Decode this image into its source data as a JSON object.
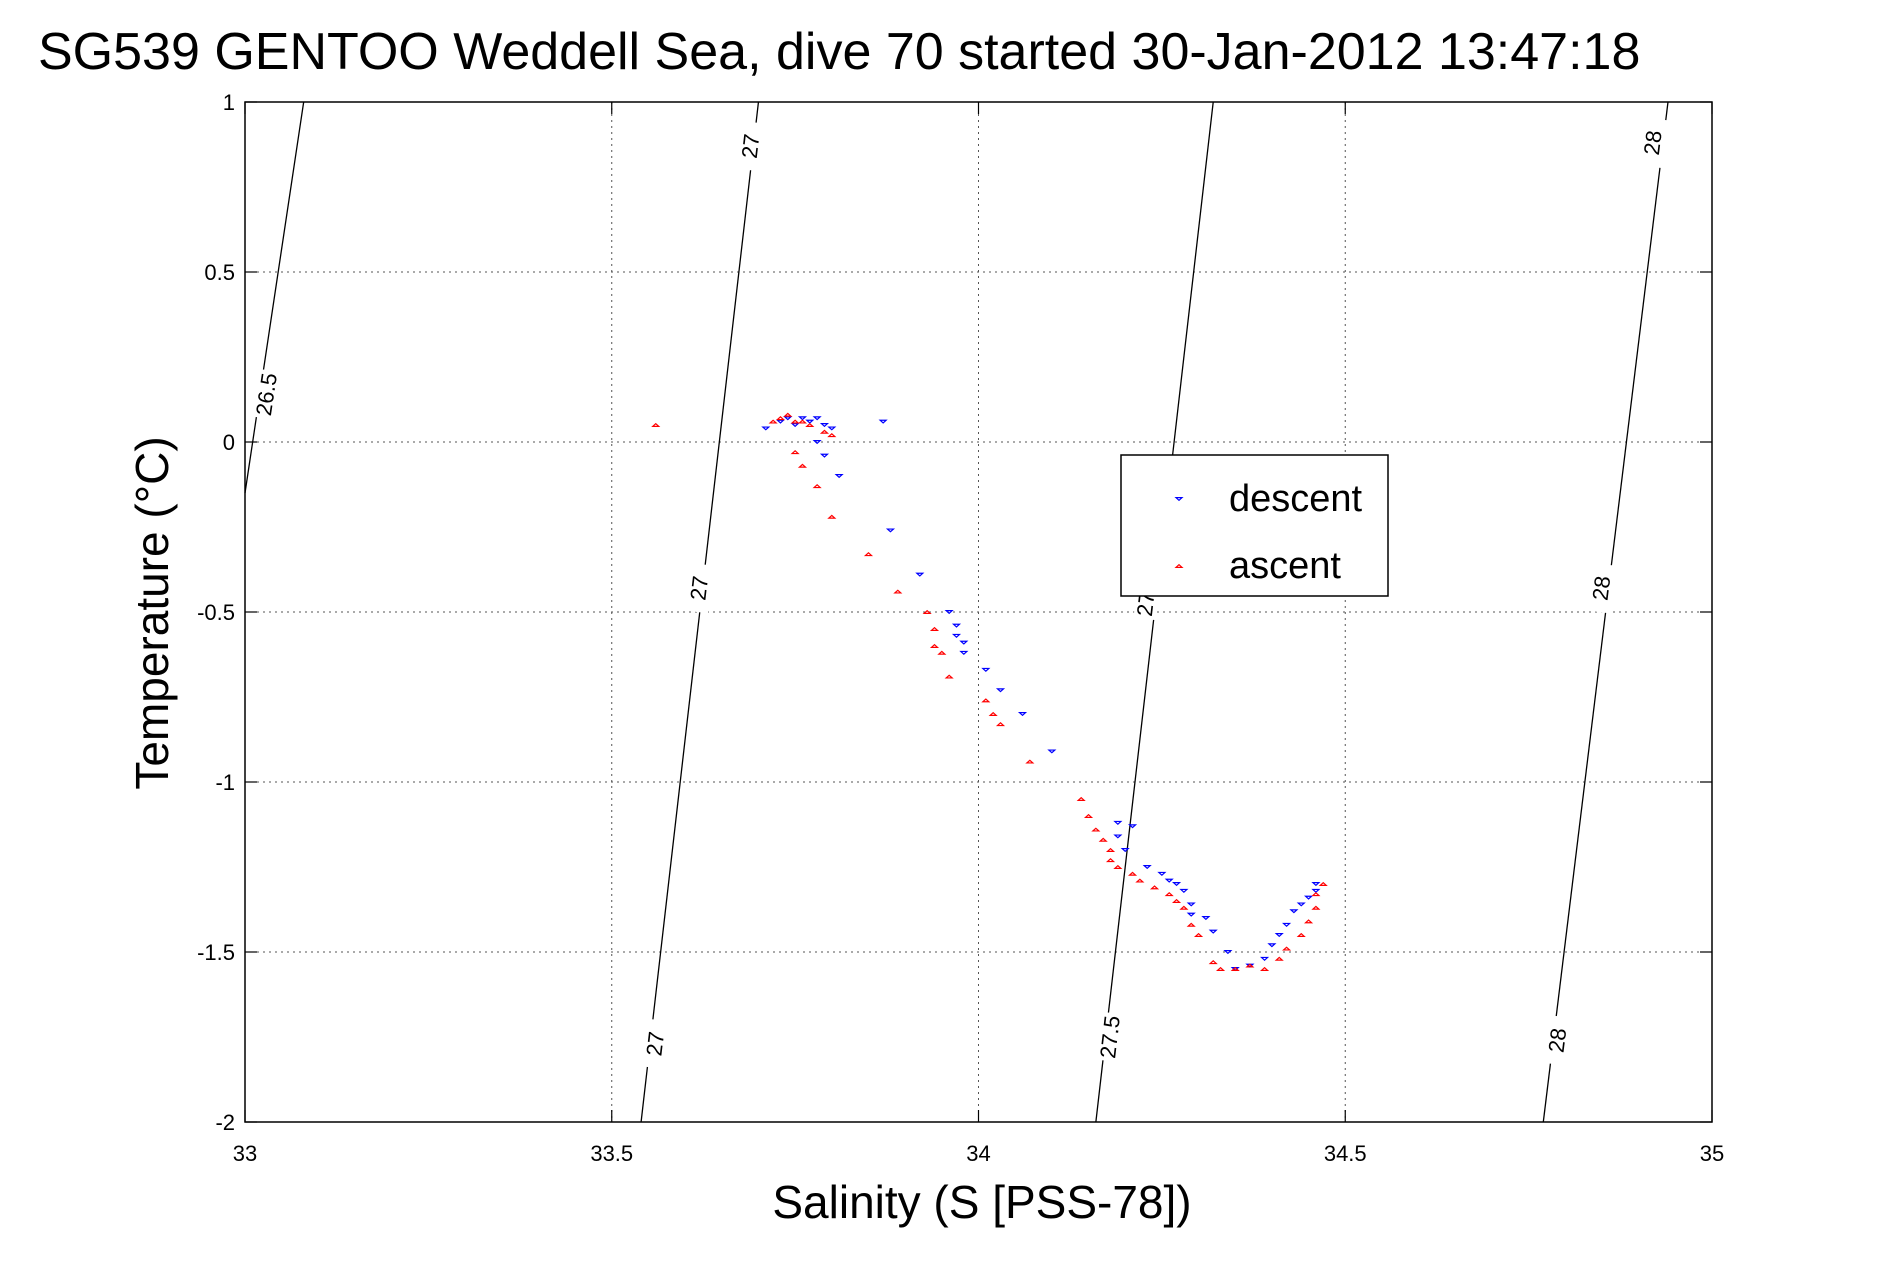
{
  "chart_data": {
    "type": "scatter",
    "title": "SG539 GENTOO Weddell Sea, dive 70 started 30-Jan-2012 13:47:18",
    "xlabel": "Salinity (S [PSS-78])",
    "ylabel": "Temperature (°C)",
    "xlim": [
      33,
      35
    ],
    "ylim": [
      -2,
      1
    ],
    "xticks": [
      33,
      33.5,
      34,
      34.5,
      35
    ],
    "xtick_labels": [
      "33",
      "33.5",
      "34",
      "34.5",
      "35"
    ],
    "yticks": [
      1,
      0.5,
      0,
      -0.5,
      -1,
      -1.5,
      -2
    ],
    "ytick_labels": [
      "1",
      "0.5",
      "0",
      "-0.5",
      "-1",
      "-1.5",
      "-2"
    ],
    "grid": true,
    "legend_position": "center-right",
    "density_contours": [
      {
        "label": "26.5",
        "points": [
          [
            33.0,
            -0.15
          ],
          [
            33.08,
            1.0
          ]
        ],
        "label_positions": [
          [
            33.03,
            0.14
          ]
        ]
      },
      {
        "label": "27",
        "points": [
          [
            33.54,
            -2.0
          ],
          [
            33.7,
            1.0
          ]
        ],
        "label_positions": [
          [
            33.56,
            -1.77
          ],
          [
            33.62,
            -0.43
          ],
          [
            33.69,
            0.87
          ]
        ]
      },
      {
        "label": "27.5",
        "points": [
          [
            34.16,
            -2.0
          ],
          [
            34.32,
            1.0
          ]
        ],
        "label_positions": [
          [
            34.18,
            -1.75
          ],
          [
            34.23,
            -0.45
          ]
        ]
      },
      {
        "label": "28",
        "points": [
          [
            34.77,
            -2.0
          ],
          [
            34.94,
            1.0
          ]
        ],
        "label_positions": [
          [
            34.79,
            -1.76
          ],
          [
            34.85,
            -0.43
          ],
          [
            34.92,
            0.88
          ]
        ]
      }
    ],
    "series": [
      {
        "name": "descent",
        "color": "#0000ff",
        "marker": "triangle-down",
        "points": [
          [
            33.71,
            0.04
          ],
          [
            33.73,
            0.06
          ],
          [
            33.74,
            0.07
          ],
          [
            33.75,
            0.05
          ],
          [
            33.76,
            0.07
          ],
          [
            33.77,
            0.06
          ],
          [
            33.78,
            0.07
          ],
          [
            33.79,
            0.05
          ],
          [
            33.8,
            0.04
          ],
          [
            33.87,
            0.06
          ],
          [
            33.78,
            0.0
          ],
          [
            33.79,
            -0.04
          ],
          [
            33.81,
            -0.1
          ],
          [
            33.88,
            -0.26
          ],
          [
            33.92,
            -0.39
          ],
          [
            33.96,
            -0.5
          ],
          [
            33.97,
            -0.54
          ],
          [
            33.97,
            -0.57
          ],
          [
            33.98,
            -0.59
          ],
          [
            33.98,
            -0.62
          ],
          [
            34.01,
            -0.67
          ],
          [
            34.03,
            -0.73
          ],
          [
            34.06,
            -0.8
          ],
          [
            34.1,
            -0.91
          ],
          [
            34.19,
            -1.12
          ],
          [
            34.19,
            -1.16
          ],
          [
            34.2,
            -1.2
          ],
          [
            34.21,
            -1.13
          ],
          [
            34.23,
            -1.25
          ],
          [
            34.25,
            -1.27
          ],
          [
            34.26,
            -1.29
          ],
          [
            34.27,
            -1.3
          ],
          [
            34.28,
            -1.32
          ],
          [
            34.29,
            -1.36
          ],
          [
            34.29,
            -1.39
          ],
          [
            34.31,
            -1.4
          ],
          [
            34.32,
            -1.44
          ],
          [
            34.34,
            -1.5
          ],
          [
            34.35,
            -1.55
          ],
          [
            34.37,
            -1.54
          ],
          [
            34.39,
            -1.52
          ],
          [
            34.4,
            -1.48
          ],
          [
            34.41,
            -1.45
          ],
          [
            34.42,
            -1.42
          ],
          [
            34.43,
            -1.38
          ],
          [
            34.44,
            -1.36
          ],
          [
            34.45,
            -1.34
          ],
          [
            34.46,
            -1.32
          ],
          [
            34.46,
            -1.3
          ]
        ]
      },
      {
        "name": "ascent",
        "color": "#ff0000",
        "marker": "triangle-up",
        "points": [
          [
            33.56,
            0.05
          ],
          [
            33.72,
            0.06
          ],
          [
            33.73,
            0.07
          ],
          [
            33.74,
            0.08
          ],
          [
            33.75,
            0.06
          ],
          [
            33.76,
            0.06
          ],
          [
            33.77,
            0.05
          ],
          [
            33.79,
            0.03
          ],
          [
            33.8,
            0.02
          ],
          [
            33.75,
            -0.03
          ],
          [
            33.76,
            -0.07
          ],
          [
            33.78,
            -0.13
          ],
          [
            33.8,
            -0.22
          ],
          [
            33.85,
            -0.33
          ],
          [
            33.89,
            -0.44
          ],
          [
            33.93,
            -0.5
          ],
          [
            33.94,
            -0.55
          ],
          [
            33.94,
            -0.6
          ],
          [
            33.95,
            -0.62
          ],
          [
            33.96,
            -0.69
          ],
          [
            34.01,
            -0.76
          ],
          [
            34.02,
            -0.8
          ],
          [
            34.03,
            -0.83
          ],
          [
            34.07,
            -0.94
          ],
          [
            34.14,
            -1.05
          ],
          [
            34.15,
            -1.1
          ],
          [
            34.16,
            -1.14
          ],
          [
            34.17,
            -1.17
          ],
          [
            34.18,
            -1.2
          ],
          [
            34.18,
            -1.23
          ],
          [
            34.19,
            -1.25
          ],
          [
            34.21,
            -1.27
          ],
          [
            34.22,
            -1.29
          ],
          [
            34.24,
            -1.31
          ],
          [
            34.26,
            -1.33
          ],
          [
            34.27,
            -1.35
          ],
          [
            34.28,
            -1.37
          ],
          [
            34.29,
            -1.42
          ],
          [
            34.3,
            -1.45
          ],
          [
            34.32,
            -1.53
          ],
          [
            34.33,
            -1.55
          ],
          [
            34.35,
            -1.55
          ],
          [
            34.37,
            -1.54
          ],
          [
            34.39,
            -1.55
          ],
          [
            34.41,
            -1.52
          ],
          [
            34.42,
            -1.49
          ],
          [
            34.44,
            -1.45
          ],
          [
            34.45,
            -1.41
          ],
          [
            34.46,
            -1.37
          ],
          [
            34.46,
            -1.33
          ],
          [
            34.47,
            -1.3
          ]
        ]
      }
    ]
  }
}
